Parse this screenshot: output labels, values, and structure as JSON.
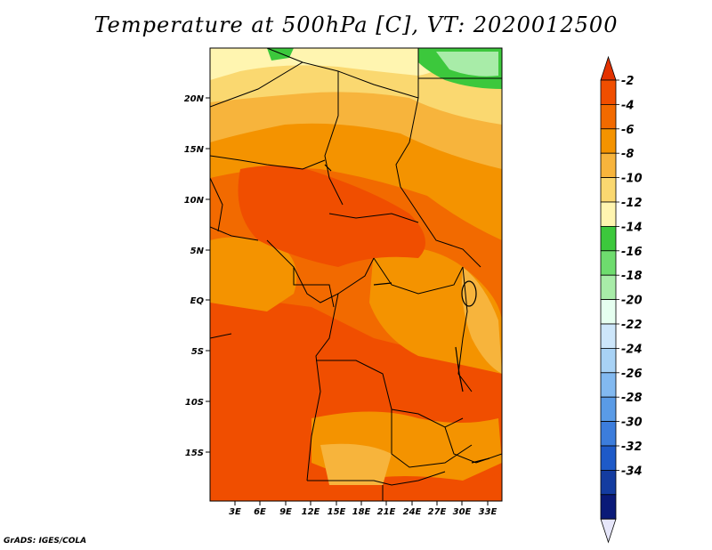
{
  "title": "Temperature at 500hPa [C], VT: 2020012500",
  "credit": "GrADS: IGES/COLA",
  "map": {
    "lat_ticks": [
      "20N",
      "15N",
      "10N",
      "5N",
      "EQ",
      "5S",
      "10S",
      "15S"
    ],
    "lon_ticks": [
      "3E",
      "6E",
      "9E",
      "12E",
      "15E",
      "18E",
      "21E",
      "24E",
      "27E",
      "30E",
      "33E"
    ]
  },
  "colorbar": {
    "levels": [
      "-2",
      "-4",
      "-6",
      "-8",
      "-10",
      "-12",
      "-14",
      "-16",
      "-18",
      "-20",
      "-22",
      "-24",
      "-26",
      "-28",
      "-30",
      "-32",
      "-34"
    ],
    "colors": [
      "#f04e00",
      "#f26a00",
      "#f49300",
      "#f7b43c",
      "#fad870",
      "#fff5b0",
      "#3cc83c",
      "#6edc6e",
      "#a8eca8",
      "#e6fff0",
      "#cde6fa",
      "#a8d2f5",
      "#82b9f0",
      "#5a9be6",
      "#3c7ddc",
      "#1e5ac8",
      "#143ca0",
      "#0a1a78"
    ],
    "top_triangle": "#e33200",
    "bottom_triangle": "#e6e6fa"
  }
}
